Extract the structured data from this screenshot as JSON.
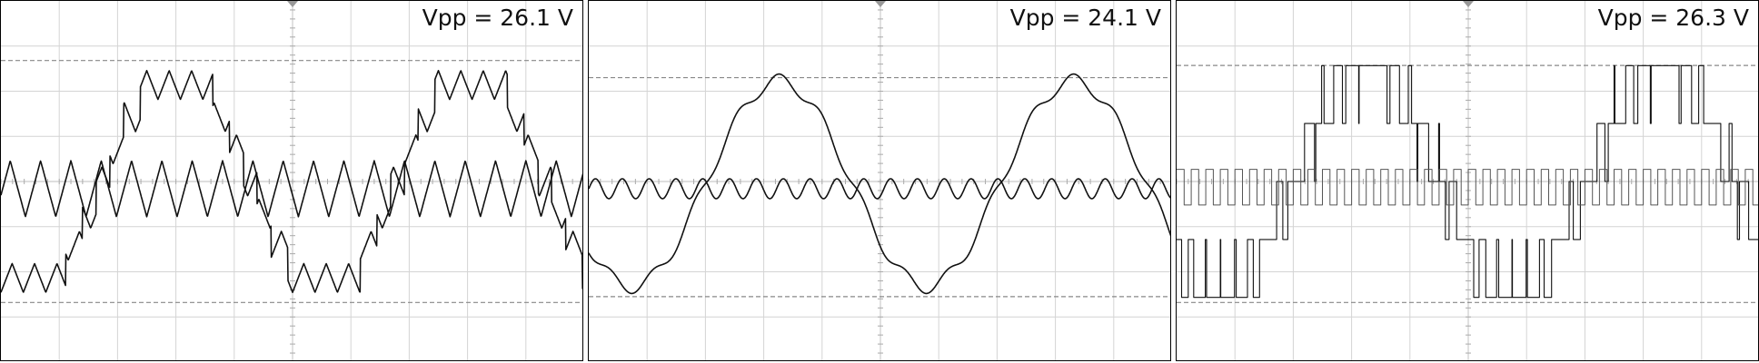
{
  "colors": {
    "trace": "#111111",
    "grid": "#d4d4d4",
    "axis": "#aaaaaa",
    "ref_line": "#888888",
    "marker": "#999999"
  },
  "chart_data": [
    {
      "type": "line",
      "title": "Vpp = 26.1 V",
      "xlabel": "",
      "ylabel": "",
      "grid": true,
      "xlim": [
        0,
        10
      ],
      "ylim": [
        -4,
        4
      ],
      "ref_lines_y": [
        2.68,
        -2.68
      ],
      "vpp_label": "Vpp = 26.1 V",
      "series": [
        {
          "kind": "stepped",
          "amplitude": 2.68,
          "period": 5.05,
          "phase": 3.3,
          "steps": 7,
          "ripple": 0.32,
          "ripple_cycles": 26
        },
        {
          "kind": "triangle",
          "amplitude": 0.62,
          "period": 0.52,
          "offset": -0.16,
          "phase": 0.1
        }
      ]
    },
    {
      "type": "line",
      "title": "Vpp = 24.1 V",
      "xlabel": "",
      "ylabel": "",
      "grid": true,
      "xlim": [
        0,
        10
      ],
      "ylim": [
        -4,
        4
      ],
      "ref_lines_y": [
        2.3,
        -2.55
      ],
      "vpp_label": "Vpp = 24.1 V",
      "series": [
        {
          "kind": "smooth",
          "amplitude": 2.28,
          "offset": -0.05,
          "period": 5.05,
          "phase": 3.05,
          "harmonic": 0.15,
          "harmonic_n": 7
        },
        {
          "kind": "sine",
          "amplitude": 0.22,
          "period": 0.46,
          "offset": -0.16,
          "phase": 0.0
        }
      ]
    },
    {
      "type": "line",
      "title": "Vpp = 26.3 V",
      "xlabel": "",
      "ylabel": "",
      "grid": true,
      "xlim": [
        0,
        10
      ],
      "ylim": [
        -4,
        4
      ],
      "ref_lines_y": [
        2.57,
        -2.68
      ],
      "vpp_label": "Vpp = 26.3 V",
      "series": [
        {
          "kind": "pwm_multilevel",
          "amplitude": 2.62,
          "period": 5.05,
          "phase": 3.05,
          "levels": 5,
          "carrier_period": 0.25
        },
        {
          "kind": "square",
          "high": 0.27,
          "low": -0.52,
          "period": 0.25,
          "phase": 0.0
        }
      ]
    }
  ]
}
